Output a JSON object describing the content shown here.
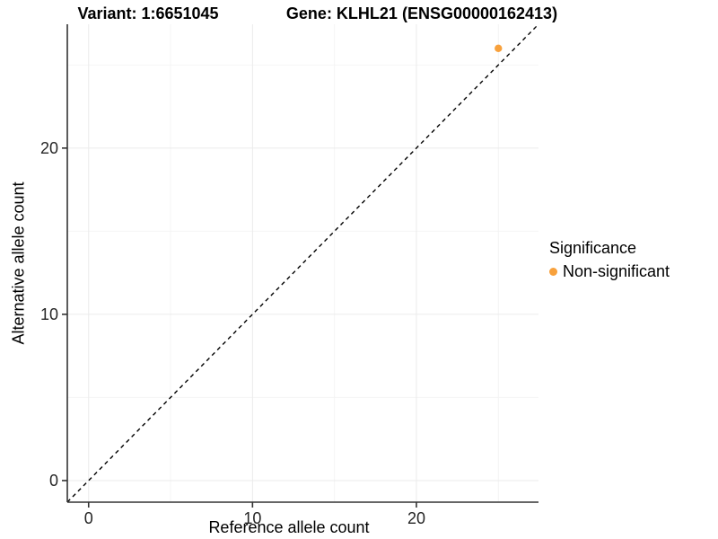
{
  "chart_data": {
    "type": "scatter",
    "title_left": "Variant: 1:6651045",
    "title_right": "Gene: KLHL21 (ENSG00000162413)",
    "xlabel": "Reference allele count",
    "ylabel": "Alternative allele count",
    "xlim": [
      -1.3,
      27.45
    ],
    "ylim": [
      -1.3,
      27.45
    ],
    "x_ticks": [
      0,
      10,
      20
    ],
    "y_ticks": [
      0,
      10,
      20
    ],
    "x_minor_ticks": [
      5,
      15,
      25
    ],
    "y_minor_ticks": [
      5,
      15,
      25
    ],
    "grid": true,
    "identity_line": {
      "slope": 1,
      "intercept": 0,
      "style": "dashed",
      "color": "#000000"
    },
    "series": [
      {
        "name": "Non-significant",
        "color": "#F8A13C",
        "points": [
          [
            25,
            26
          ]
        ]
      }
    ],
    "legend": {
      "title": "Significance",
      "position": "right",
      "items": [
        {
          "label": "Non-significant",
          "color": "#F8A13C"
        }
      ]
    }
  },
  "colors": {
    "background": "#FFFFFF",
    "axis_line": "#333333",
    "tick_label": "#262626",
    "grid_major": "#EBEBEB",
    "grid_minor": "#F4F4F4",
    "point_orange": "#F8A13C"
  }
}
